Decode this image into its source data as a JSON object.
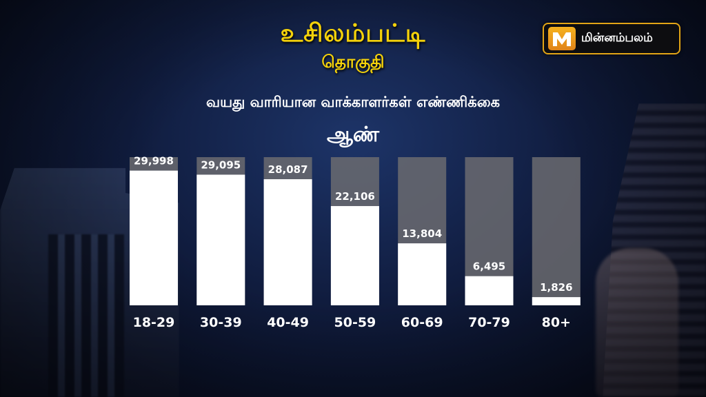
{
  "header": {
    "title": "உசிலம்பட்டி",
    "subtitle": "தொகுதி",
    "chart_caption": "வயது வாரியான வாக்காளர்கள் எண்ணிக்கை",
    "gender_label": "ஆண்"
  },
  "logo": {
    "text": "மின்னம்பலம்",
    "icon": "m-logo-icon",
    "accent": "#f6b21e"
  },
  "chart_data": {
    "type": "bar",
    "title": "வயது வாரியான வாக்காளர்கள் எண்ணிக்கை",
    "categories": [
      "18-29",
      "30-39",
      "40-49",
      "50-59",
      "60-69",
      "70-79",
      "80+"
    ],
    "values": [
      29998,
      29095,
      28087,
      22106,
      13804,
      6495,
      1826
    ],
    "value_labels": [
      "29,998",
      "29,095",
      "28,087",
      "22,106",
      "13,804",
      "6,495",
      "1,826"
    ],
    "ylim": [
      0,
      33000
    ],
    "grid": false,
    "legend": "none",
    "colors": {
      "bar": "#ffffff",
      "track": "#6b6b70",
      "label": "#ffffff",
      "title": "#f5d20a"
    }
  }
}
